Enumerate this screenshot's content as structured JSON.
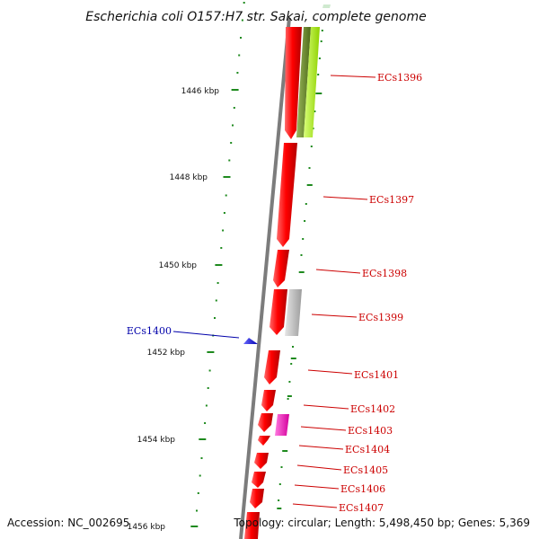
{
  "title": "Escherichia coli O157:H7 str. Sakai, complete genome",
  "accession": "Accession: NC_002695",
  "summary": "Topology: circular; Length: 5,498,450 bp; Genes: 5,369",
  "colors": {
    "backbone": "#7c7c7c",
    "forward_gene": "#ff0000",
    "reverse_gene": "#1a1aff",
    "gene_label_forward": "#cc0000",
    "gene_label_reverse": "#0000aa",
    "tick": "#1e8a1e",
    "feature_green": "#b8ff2a",
    "feature_darkgreen": "#6d8e2c",
    "feature_gray": "#c8c8c8",
    "feature_pink": "#ff33cc",
    "feature_salmon": "#ffcccc"
  },
  "scale_labels": [
    "1446 kbp",
    "1448 kbp",
    "1450 kbp",
    "1452 kbp",
    "1454 kbp",
    "1456 kbp"
  ],
  "genes": [
    {
      "label": "ECs1396",
      "strand": "forward"
    },
    {
      "label": "ECs1397",
      "strand": "forward"
    },
    {
      "label": "ECs1398",
      "strand": "forward"
    },
    {
      "label": "ECs1399",
      "strand": "forward"
    },
    {
      "label": "ECs1400",
      "strand": "reverse"
    },
    {
      "label": "ECs1401",
      "strand": "forward"
    },
    {
      "label": "ECs1402",
      "strand": "forward"
    },
    {
      "label": "ECs1403",
      "strand": "forward"
    },
    {
      "label": "ECs1404",
      "strand": "forward"
    },
    {
      "label": "ECs1405",
      "strand": "forward"
    },
    {
      "label": "ECs1406",
      "strand": "forward"
    },
    {
      "label": "ECs1407",
      "strand": "forward"
    }
  ],
  "features": [
    {
      "name": "salmon-feature",
      "color": "salmon"
    },
    {
      "name": "darkgreen-feature",
      "color": "darkgreen"
    },
    {
      "name": "green-feature",
      "color": "green"
    },
    {
      "name": "gray-feature",
      "color": "gray"
    },
    {
      "name": "pink-feature",
      "color": "pink"
    }
  ]
}
